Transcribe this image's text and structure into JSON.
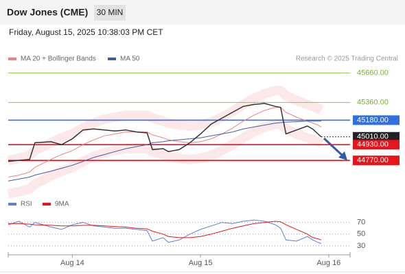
{
  "header": {
    "title": "Dow Jones (CME)",
    "timeframe": "30 MIN",
    "datetime": "Friday, August 15, 2025 10:38:03 PM CET",
    "credit": "Research © 2025 Trading Central"
  },
  "chart_data": [
    {
      "type": "line",
      "x": [
        -12,
        -10,
        -8,
        -7,
        -4,
        -2,
        0,
        2,
        4,
        6,
        8,
        10,
        12,
        14,
        15,
        17,
        18,
        20,
        22,
        24,
        26,
        28,
        30,
        32,
        34,
        36,
        38,
        39,
        40,
        42,
        44,
        45,
        46,
        46.6
      ],
      "values": [
        44760,
        44770,
        44780,
        44950,
        44960,
        44930,
        44990,
        45080,
        45090,
        45080,
        45070,
        45080,
        45060,
        45050,
        44880,
        44890,
        44860,
        44880,
        44950,
        45040,
        45140,
        45200,
        45260,
        45320,
        45340,
        45350,
        45320,
        45310,
        45040,
        45080,
        45120,
        45090,
        45040,
        45010
      ],
      "color": "#333333",
      "series": [
        {
          "name": "MA 20 + Bollinger Bands",
          "color": "#f08080",
          "values": [
            44600,
            44620,
            44650,
            44700,
            44780,
            44830,
            44870,
            44930,
            44980,
            45020,
            45040,
            45060,
            45060,
            45060,
            45030,
            45000,
            44980,
            44960,
            44950,
            44960,
            44990,
            45040,
            45100,
            45170,
            45230,
            45280,
            45310,
            45310,
            45260,
            45210,
            45170,
            45150,
            45130,
            45110
          ],
          "upper": [
            44770,
            44790,
            44820,
            44870,
            44950,
            45000,
            45040,
            45100,
            45150,
            45190,
            45210,
            45230,
            45230,
            45230,
            45200,
            45170,
            45150,
            45130,
            45120,
            45130,
            45160,
            45210,
            45270,
            45340,
            45400,
            45450,
            45480,
            45480,
            45430,
            45380,
            45340,
            45320,
            45300,
            45280
          ],
          "lower": [
            44430,
            44450,
            44480,
            44530,
            44610,
            44660,
            44700,
            44760,
            44810,
            44850,
            44870,
            44890,
            44890,
            44890,
            44860,
            44830,
            44810,
            44790,
            44780,
            44790,
            44820,
            44870,
            44930,
            45000,
            45060,
            45110,
            45140,
            45140,
            45090,
            45040,
            45000,
            44980,
            44960,
            44940
          ]
        },
        {
          "name": "MA 50",
          "color": "#3a5fa8",
          "values": [
            44560,
            44580,
            44600,
            44620,
            44660,
            44690,
            44720,
            44760,
            44800,
            44830,
            44860,
            44890,
            44910,
            44930,
            44950,
            44960,
            44970,
            44980,
            44990,
            45000,
            45020,
            45040,
            45060,
            45090,
            45110,
            45130,
            45150,
            45155,
            45160,
            45165,
            45170,
            45170,
            45170,
            45170
          ]
        }
      ],
      "levels": [
        {
          "value": 45660,
          "label": "45660.00",
          "color": "#8cc63f"
        },
        {
          "value": 45360,
          "label": "45360.00",
          "color": "#8cc63f"
        },
        {
          "value": 45180,
          "label": "45180.00",
          "color": "#2f6fe0"
        },
        {
          "value": 45010,
          "label": "45010.00",
          "color": "#222222",
          "dash": true
        },
        {
          "value": 44930,
          "label": "44930.00",
          "color": "#e8141b"
        },
        {
          "value": 44770,
          "label": "44770.00",
          "color": "#e8141b"
        }
      ],
      "xlim": [
        -12,
        52
      ],
      "ylim": [
        44450,
        45790
      ],
      "xticks": [
        {
          "value": 0,
          "label": "Aug 14"
        },
        {
          "value": 24,
          "label": "Aug 15"
        },
        {
          "value": 48,
          "label": "Aug 16"
        }
      ]
    },
    {
      "type": "line",
      "x": [
        -12,
        -10,
        -8,
        -7,
        -4,
        -2,
        0,
        2,
        4,
        6,
        8,
        10,
        12,
        14,
        15,
        17,
        18,
        20,
        22,
        24,
        26,
        28,
        30,
        32,
        34,
        36,
        38,
        39,
        40,
        42,
        44,
        45,
        46,
        46.6
      ],
      "series": [
        {
          "name": "RSI",
          "color": "#5b7fd6",
          "values": [
            66,
            72,
            62,
            70,
            62,
            58,
            66,
            70,
            64,
            62,
            60,
            60,
            58,
            56,
            38,
            44,
            36,
            40,
            50,
            58,
            64,
            70,
            68,
            72,
            74,
            72,
            66,
            60,
            40,
            38,
            46,
            40,
            36,
            34
          ]
        },
        {
          "name": "9MA",
          "color": "#e8141b",
          "values": [
            68,
            68,
            67,
            66,
            65,
            64,
            64,
            65,
            65,
            64,
            63,
            62,
            60,
            59,
            55,
            50,
            46,
            44,
            44,
            46,
            50,
            55,
            60,
            64,
            68,
            70,
            72,
            71,
            66,
            58,
            50,
            44,
            42,
            40
          ]
        }
      ],
      "xlim": [
        -12,
        52
      ],
      "ylim": [
        17,
        93
      ],
      "yticks": [
        70,
        50,
        30
      ]
    }
  ]
}
